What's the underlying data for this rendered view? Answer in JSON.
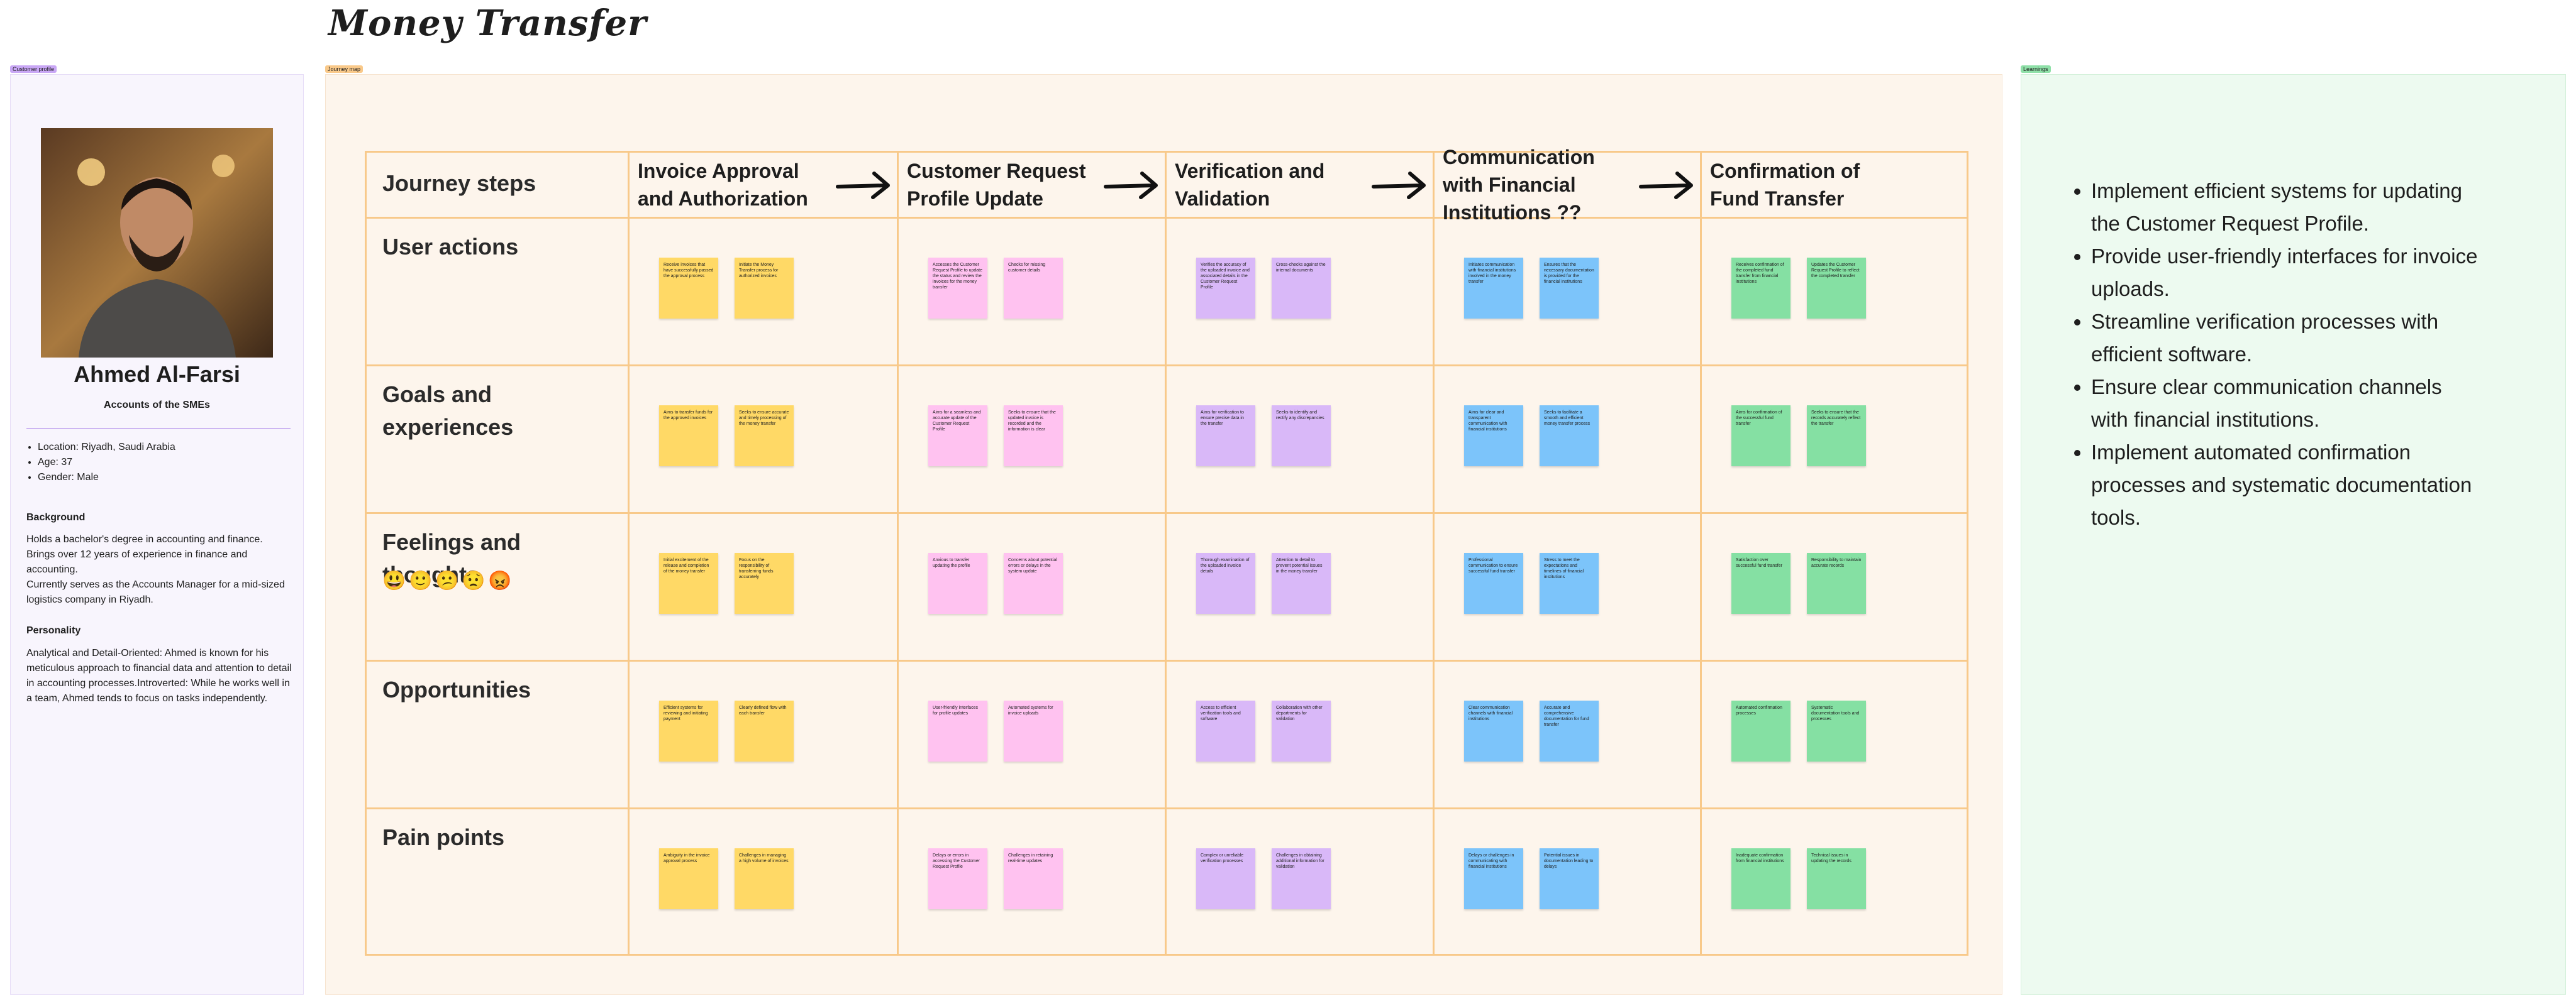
{
  "header": {
    "title": "Money Transfer"
  },
  "profile": {
    "tag": "Customer profile",
    "name": "Ahmed Al-Farsi",
    "role": "Accounts of the SMEs",
    "facts": [
      "Location: Riyadh, Saudi Arabia",
      "Age: 37",
      "Gender: Male"
    ],
    "background_heading": "Background",
    "background": [
      "Holds a bachelor's degree in accounting and finance. Brings over 12 years of experience in finance and accounting.",
      "Currently serves as the Accounts Manager for a mid-sized logistics company in Riyadh."
    ],
    "personality_heading": "Personality",
    "personality": "Analytical and Detail-Oriented: Ahmed is known for his meticulous approach to financial data and attention to detail in accounting processes.Introverted: While he works well in a team, Ahmed tends to focus on tasks independently."
  },
  "journey": {
    "tag": "Journey map",
    "corner": "Journey steps",
    "stages": [
      {
        "title": "Invoice Approval and Authorization",
        "color": "#ffd966"
      },
      {
        "title": "Customer Request Profile Update",
        "color": "#ffc2f0"
      },
      {
        "title": "Verification and Validation",
        "color": "#d9b8f8"
      },
      {
        "title": "Communication with Financial Institutions ??",
        "color": "#7cc4fa"
      },
      {
        "title": "Confirmation of Fund Transfer",
        "color": "#85e0a3"
      }
    ],
    "rows": [
      {
        "label": "User actions",
        "notes": [
          [
            "Receive invoices that have successfully passed the approval process",
            "Initiate the Money Transfer process for authorized invoices"
          ],
          [
            "Accesses the Customer Request Profile to update the status and review the invoices for the money transfer",
            "Checks for missing customer details"
          ],
          [
            "Verifies the accuracy of the uploaded invoice and associated details in the Customer Request Profile",
            "Cross-checks against the internal documents"
          ],
          [
            "Initiates communication with financial institutions involved in the money transfer",
            "Ensures that the necessary documentation is provided for the financial institutions"
          ],
          [
            "Receives confirmation of the completed fund transfer from financial institutions",
            "Updates the Customer Request Profile to reflect the completed transfer"
          ]
        ]
      },
      {
        "label": "Goals and experiences",
        "notes": [
          [
            "Aims to transfer funds for the approved invoices",
            "Seeks to ensure accurate and timely processing of the money transfer"
          ],
          [
            "Aims for a seamless and accurate update of the Customer Request Profile",
            "Seeks to ensure that the updated invoice is recorded and the information is clear"
          ],
          [
            "Aims for verification to ensure precise data in the transfer",
            "Seeks to identify and rectify any discrepancies"
          ],
          [
            "Aims for clear and transparent communication with financial institutions",
            "Seeks to facilitate a smooth and efficient money transfer process"
          ],
          [
            "Aims for confirmation of the successful fund transfer",
            "Seeks to ensure that the records accurately reflect the transfer"
          ]
        ]
      },
      {
        "label": "Feelings and thoughts",
        "emojis": [
          "😃",
          "🙂",
          "😕",
          "😟",
          "😡"
        ],
        "notes": [
          [
            "Initial excitement of the release and completion of the money transfer",
            "Focus on the responsibility of transferring funds accurately"
          ],
          [
            "Anxious to transfer updating the profile",
            "Concerns about potential errors or delays in the system update"
          ],
          [
            "Thorough examination of the uploaded invoice details",
            "Attention to detail to prevent potential issues in the money transfer"
          ],
          [
            "Professional communication to ensure successful fund transfer",
            "Stress to meet the expectations and timelines of financial institutions"
          ],
          [
            "Satisfaction over successful fund transfer",
            "Responsibility to maintain accurate records"
          ]
        ]
      },
      {
        "label": "Opportunities",
        "notes": [
          [
            "Efficient systems for reviewing and initiating payment",
            "Clearly defined flow with each transfer"
          ],
          [
            "User-friendly interfaces for profile updates",
            "Automated systems for invoice uploads"
          ],
          [
            "Access to efficient verification tools and software",
            "Collaboration with other departments for validation"
          ],
          [
            "Clear communication channels with financial institutions",
            "Accurate and comprehensive documentation for fund transfer"
          ],
          [
            "Automated confirmation processes",
            "Systematic documentation tools and processes"
          ]
        ]
      },
      {
        "label": "Pain points",
        "notes": [
          [
            "Ambiguity in the invoice approval process",
            "Challenges in managing a high volume of invoices"
          ],
          [
            "Delays or errors in accessing the Customer Request Profile",
            "Challenges in retaining real-time updates"
          ],
          [
            "Complex or unreliable verification processes",
            "Challenges in obtaining additional information for validation"
          ],
          [
            "Delays or challenges in communicating with financial institutions",
            "Potential issues in documentation leading to delays"
          ],
          [
            "Inadequate confirmation from financial institutions",
            "Technical issues in updating the records"
          ]
        ]
      }
    ]
  },
  "learnings": {
    "tag": "Learnings",
    "items": [
      "Implement efficient systems for updating the Customer Request Profile.",
      "Provide user-friendly interfaces for invoice uploads.",
      "Streamline verification processes with efficient software.",
      "Ensure clear communication channels with financial institutions.",
      "Implement automated confirmation processes and systematic documentation tools."
    ]
  }
}
